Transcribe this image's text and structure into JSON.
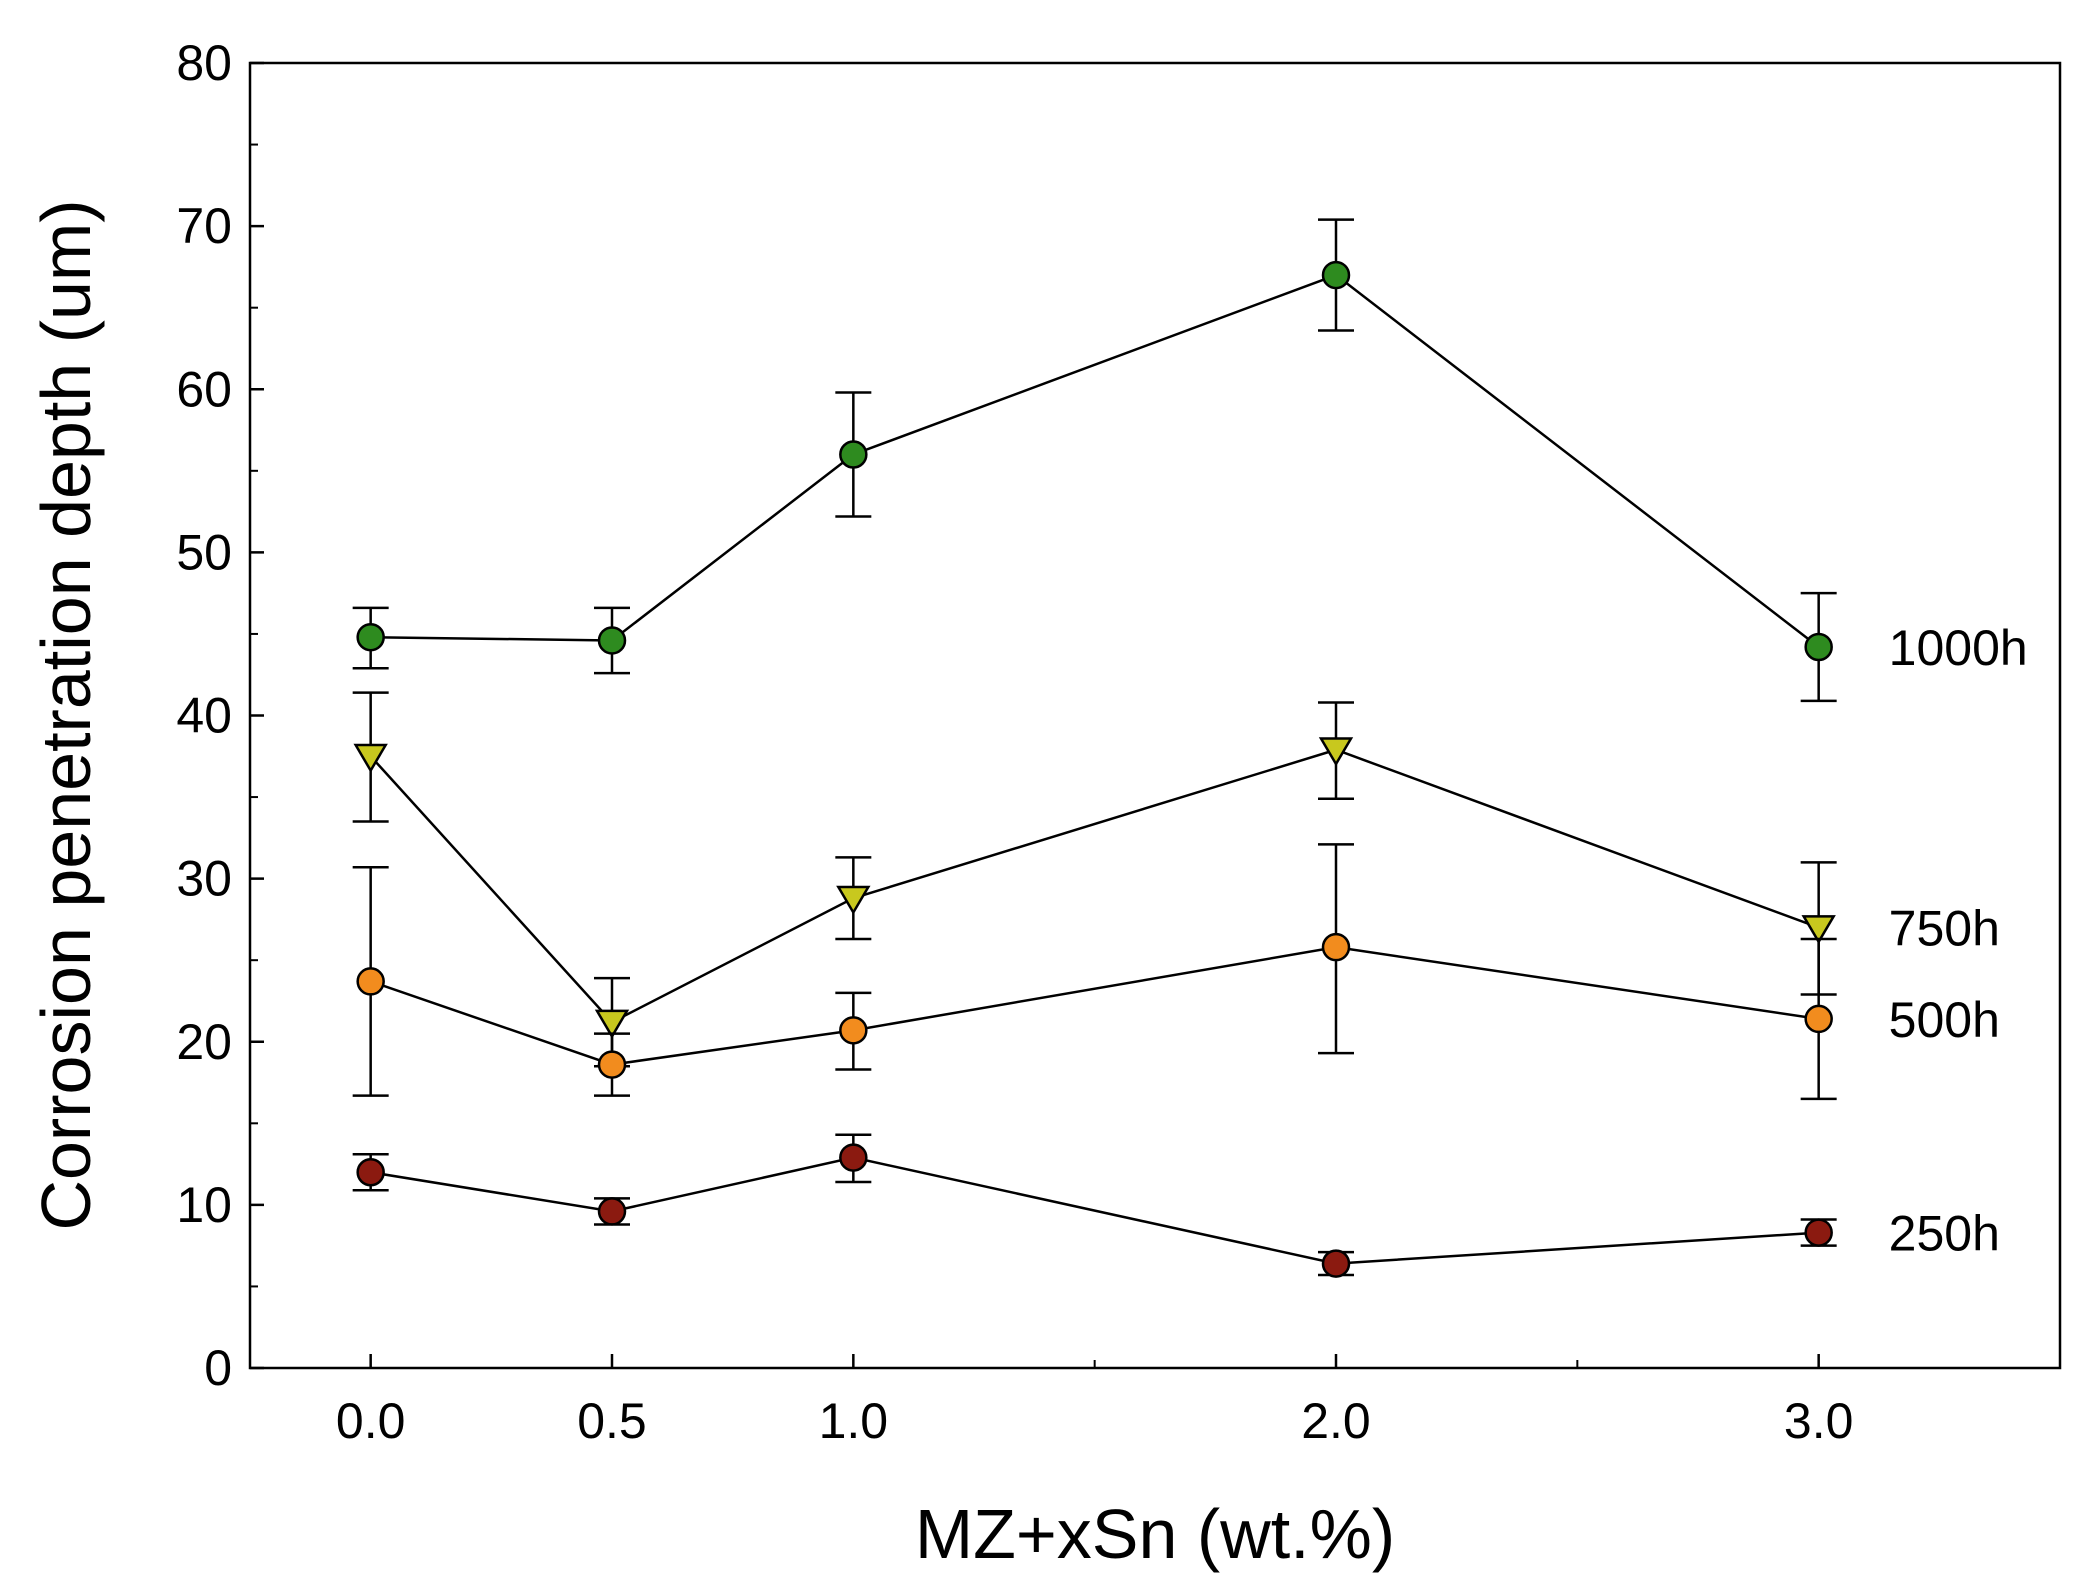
{
  "chart_data": {
    "type": "line",
    "title": "",
    "xlabel": "MZ+xSn (wt.%)",
    "ylabel": "Corrosion penetration depth (um)",
    "x": [
      0.0,
      0.5,
      1.0,
      2.0,
      3.0
    ],
    "x_tick_labels": [
      "0.0",
      "0.5",
      "1.0",
      "2.0",
      "3.0"
    ],
    "xlim": [
      -0.25,
      3.5
    ],
    "ylim": [
      0,
      80
    ],
    "y_ticks": [
      0,
      10,
      20,
      30,
      40,
      50,
      60,
      70,
      80
    ],
    "grid": false,
    "legend": "inline labels at right end of each series",
    "series": [
      {
        "name": "1000h",
        "marker": "circle",
        "color": "#2e8b1f",
        "values": [
          44.8,
          44.6,
          56.0,
          67.0,
          44.2
        ],
        "err_low": [
          42.9,
          42.6,
          52.2,
          63.6,
          40.9
        ],
        "err_high": [
          46.6,
          46.6,
          59.8,
          70.4,
          47.5
        ]
      },
      {
        "name": "750h",
        "marker": "triangle-down",
        "color": "#c8c81e",
        "values": [
          37.5,
          21.2,
          28.8,
          37.9,
          27.0
        ],
        "err_low": [
          33.5,
          18.5,
          26.3,
          34.9,
          22.9
        ],
        "err_high": [
          41.4,
          23.9,
          31.3,
          40.8,
          31.0
        ]
      },
      {
        "name": "500h",
        "marker": "circle",
        "color": "#f28c1e",
        "values": [
          23.7,
          18.6,
          20.7,
          25.8,
          21.4
        ],
        "err_low": [
          16.7,
          16.7,
          18.3,
          19.3,
          16.5
        ],
        "err_high": [
          30.7,
          20.5,
          23.0,
          32.1,
          26.3
        ]
      },
      {
        "name": "250h",
        "marker": "circle",
        "color": "#8b1a10",
        "values": [
          12.0,
          9.6,
          12.9,
          6.4,
          8.3
        ],
        "err_low": [
          10.9,
          8.8,
          11.4,
          5.7,
          7.5
        ],
        "err_high": [
          13.1,
          10.4,
          14.3,
          7.1,
          9.1
        ]
      }
    ]
  }
}
